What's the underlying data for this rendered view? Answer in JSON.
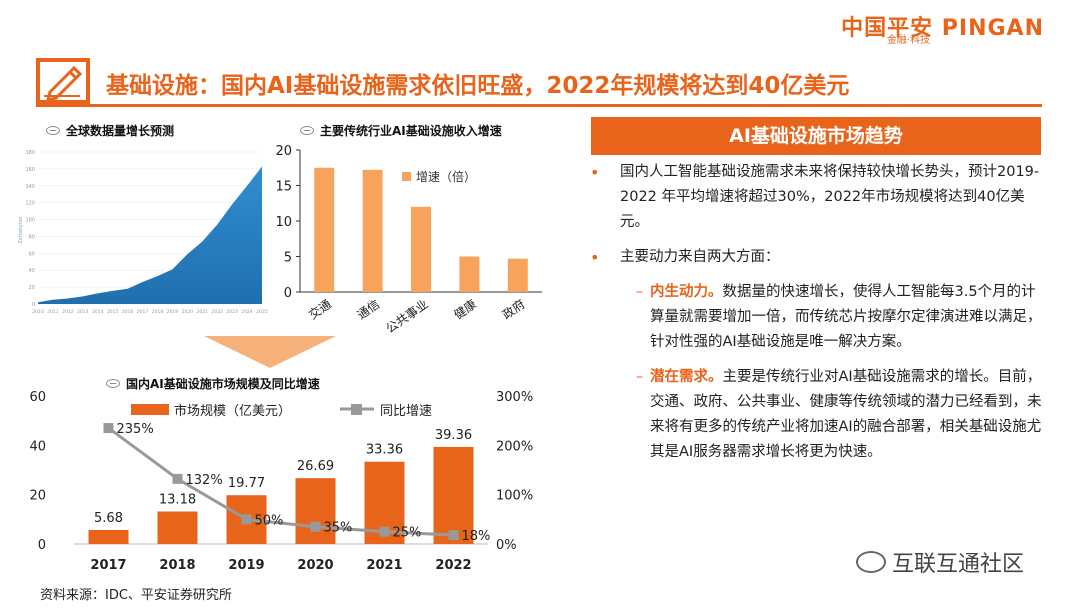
{
  "brand": {
    "name": "中国平安 PINGAN",
    "tagline": "金融·科技"
  },
  "page_title": "基础设施：国内AI基础设施需求依旧旺盛，2022年规模将达到40亿美元",
  "charts_titles": {
    "global": "全球数据量增长预测",
    "industry": "主要传统行业AI基础设施收入增速",
    "domestic": "国内AI基础设施市场规模及同比增速"
  },
  "trend": {
    "header": "AI基础设施市场趋势",
    "bullet1": "国内人工智能基础设施需求未来将保持较快增长势头，预计2019-2022 年平均增速将超过30%，2022年市场规模将达到40亿美元。",
    "bullet2": "主要动力来自两大方面：",
    "sub1_label": "内生动力。",
    "sub1_text": "数据量的快速增长，使得人工智能每3.5个月的计算量就需要增加一倍，而传统芯片按摩尔定律演进难以满足，针对性强的AI基础设施是唯一解决方案。",
    "sub2_label": "潜在需求。",
    "sub2_text": "主要是传统行业对AI基础设施需求的增长。目前，交通、政府、公共事业、健康等传统领域的潜力已经看到，未来将有更多的传统产业将加速AI的融合部署，相关基础设施尤其是AI服务器需求增长将更为快速。"
  },
  "source": "资料来源：IDC、平安证券研究所",
  "watermark": "互联互通社区",
  "colors": {
    "accent": "#e8641b",
    "bar_light": "#f7a35c",
    "line": "#999999",
    "area": "#2f8fd0"
  },
  "chart_data": [
    {
      "type": "area",
      "title": "全球数据量增长预测",
      "ylabel": "Zettabytes",
      "x": [
        "2010",
        "2011",
        "2012",
        "2013",
        "2014",
        "2015",
        "2016",
        "2017",
        "2018",
        "2019",
        "2020",
        "2021",
        "2022",
        "2023",
        "2024",
        "2025"
      ],
      "y": [
        2,
        5,
        6.5,
        9,
        12.5,
        15.5,
        18,
        26,
        33,
        41,
        59,
        74,
        94,
        118,
        140,
        163
      ],
      "yticks": [
        0,
        20,
        40,
        60,
        80,
        100,
        120,
        140,
        160,
        180
      ],
      "ylim": [
        0,
        180
      ]
    },
    {
      "type": "bar",
      "title": "主要传统行业AI基础设施收入增速",
      "categories": [
        "交通",
        "通信",
        "公共事业",
        "健康",
        "政府"
      ],
      "values": [
        17.5,
        17.2,
        12,
        5,
        4.7
      ],
      "legend": "增速（倍）",
      "yticks": [
        0,
        5,
        10,
        15,
        20
      ],
      "ylim": [
        0,
        20
      ]
    },
    {
      "type": "bar",
      "title": "国内AI基础设施市场规模及同比增速",
      "categories": [
        "2017",
        "2018",
        "2019",
        "2020",
        "2021",
        "2022"
      ],
      "series": [
        {
          "name": "市场规模（亿美元）",
          "values": [
            5.68,
            13.18,
            19.77,
            26.69,
            33.36,
            39.36
          ],
          "labels": [
            "5.68",
            "13.18",
            "19.77",
            "26.69",
            "33.36",
            "39.36"
          ]
        },
        {
          "name": "同比增速",
          "type": "line",
          "values": [
            235,
            132,
            50,
            35,
            25,
            18
          ],
          "labels": [
            "235%",
            "132%",
            "50%",
            "35%",
            "25%",
            "18%"
          ]
        }
      ],
      "yticks_left": [
        "0",
        "20",
        "40",
        "60"
      ],
      "yticks_right": [
        "0%",
        "100%",
        "200%",
        "300%"
      ],
      "ylim_left": [
        0,
        60
      ],
      "ylim_right": [
        0,
        300
      ]
    }
  ]
}
